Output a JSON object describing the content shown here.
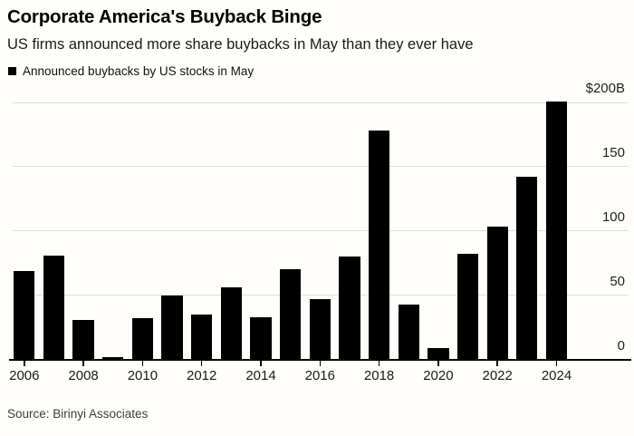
{
  "page": {
    "title": "Corporate America's Buyback Binge",
    "subtitle": "US firms announced more share buybacks in May than they ever have",
    "legend": {
      "marker": "black-square-swatch",
      "label": "Announced buybacks by US stocks in May"
    },
    "source": "Source: Birinyi Associates"
  },
  "colors": {
    "background": "#fffefb",
    "bar": "#000000",
    "gridline": "#dcdcd8",
    "baseline": "#000000",
    "title_text": "#000000",
    "axis_text": "#1f1f1f",
    "source_text": "#3d3d3d"
  },
  "chart_data": {
    "type": "bar",
    "title": "Corporate America's Buyback Binge",
    "subtitle": "US firms announced more share buybacks in May than they ever have",
    "legend_entries": [
      "Announced buybacks by US stocks in May"
    ],
    "legend_position": "top-left",
    "source": "Source: Birinyi Associates",
    "unit": "billions of US dollars",
    "categories": [
      2006,
      2007,
      2008,
      2009,
      2010,
      2011,
      2012,
      2013,
      2014,
      2015,
      2016,
      2017,
      2018,
      2019,
      2020,
      2021,
      2022,
      2023,
      2024
    ],
    "values": [
      69,
      81,
      31,
      2,
      32,
      50,
      35,
      56,
      33,
      70,
      47,
      80,
      178,
      43,
      9,
      82,
      103,
      142,
      201
    ],
    "ylim": [
      0,
      200
    ],
    "yticks": [
      0,
      50,
      100,
      150,
      200
    ],
    "ytick_labels": [
      "0",
      "50",
      "100",
      "150",
      "$200B"
    ],
    "ytick_side": "right",
    "xtick_labels": [
      "2006",
      "2008",
      "2010",
      "2012",
      "2014",
      "2016",
      "2018",
      "2020",
      "2022",
      "2024"
    ],
    "grid": true,
    "xlabel": "",
    "ylabel": ""
  }
}
